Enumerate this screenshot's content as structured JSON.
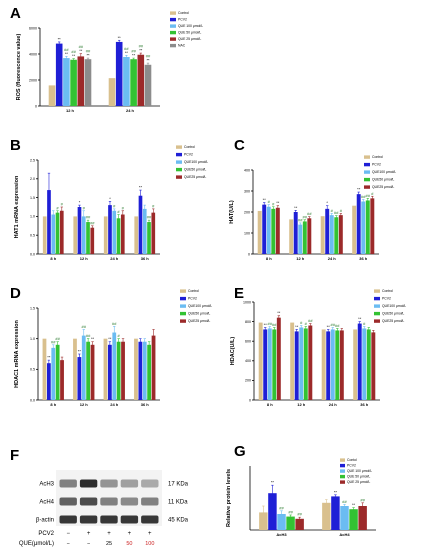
{
  "colors": {
    "control": "#d9c08e",
    "pcv2": "#1f1fd6",
    "que100": "#6bbcf2",
    "que50": "#33c233",
    "que25": "#9c2a2a",
    "nac": "#8c8c8c",
    "band": "#222222"
  },
  "chart_data": [
    {
      "panel": "A",
      "type": "bar",
      "ylabel": "ROS (fluorescence value)",
      "ylim": [
        0,
        7000
      ],
      "yticks": [
        "0",
        "2000",
        "4000",
        "6000"
      ],
      "categories": [
        "12 h",
        "24 h"
      ],
      "series": [
        {
          "name": "Control",
          "color_key": "control",
          "values": [
            1850,
            2500
          ],
          "errors": [
            0,
            0
          ],
          "annot": [
            "",
            ""
          ]
        },
        {
          "name": "PCV2",
          "color_key": "pcv2",
          "values": [
            5600,
            5750
          ],
          "errors": [
            150,
            150
          ],
          "annot": [
            "**",
            "**"
          ]
        },
        {
          "name": "QUE 100 μmol/L",
          "color_key": "que100",
          "values": [
            4300,
            4400
          ],
          "errors": [
            150,
            150
          ],
          "annot": [
            "##\n**",
            "##\n**"
          ]
        },
        {
          "name": "QUE 50 μmol/L",
          "color_key": "que50",
          "values": [
            4150,
            4200
          ],
          "errors": [
            100,
            100
          ],
          "annot": [
            "##\n**",
            "##\n**"
          ]
        },
        {
          "name": "QUE 25 μmol/L",
          "color_key": "que25",
          "values": [
            4450,
            4600
          ],
          "errors": [
            250,
            150
          ],
          "annot": [
            "##\n**",
            "##\n**"
          ]
        },
        {
          "name": "NAC",
          "color_key": "nac",
          "values": [
            4200,
            3700
          ],
          "errors": [
            100,
            150
          ],
          "annot": [
            "##\n**",
            "##\n**"
          ]
        }
      ]
    },
    {
      "panel": "B",
      "type": "bar",
      "ylabel": "HAT1 mRNA expression",
      "ylim": [
        0,
        2.5
      ],
      "yticks": [
        "0.0",
        "0.5",
        "1.0",
        "1.5",
        "2.0",
        "2.5"
      ],
      "categories": [
        "8 h",
        "12 h",
        "24 h",
        "36 h"
      ],
      "series": [
        {
          "name": "Control",
          "color_key": "control",
          "values": [
            1.0,
            1.0,
            1.0,
            1.0
          ],
          "errors": [
            0,
            0,
            0,
            0
          ],
          "annot": [
            "",
            "",
            "",
            ""
          ]
        },
        {
          "name": "PCV2",
          "color_key": "pcv2",
          "values": [
            1.7,
            1.25,
            1.3,
            1.55
          ],
          "errors": [
            0.45,
            0.05,
            0.1,
            0.15
          ],
          "annot": [
            "",
            "*",
            "*",
            "**"
          ]
        },
        {
          "name": "QUE100 μmol/L",
          "color_key": "que100",
          "values": [
            1.05,
            1.0,
            1.15,
            1.2
          ],
          "errors": [
            0.1,
            0.15,
            0.05,
            0.1
          ],
          "annot": [
            "",
            "#",
            "#",
            ""
          ]
        },
        {
          "name": "QUE50 μmol/L",
          "color_key": "que50",
          "values": [
            1.1,
            0.85,
            0.95,
            0.85
          ],
          "errors": [
            0.05,
            0.05,
            0.1,
            0.05
          ],
          "annot": [
            "#",
            "##",
            "#",
            "##"
          ]
        },
        {
          "name": "QUE25 μmol/L",
          "color_key": "que25",
          "values": [
            1.15,
            0.7,
            1.05,
            1.1
          ],
          "errors": [
            0.1,
            0.05,
            0.1,
            0.1
          ],
          "annot": [
            "#",
            "##",
            "#",
            "#"
          ]
        }
      ]
    },
    {
      "panel": "C",
      "type": "bar",
      "ylabel": "HAT(U/L)",
      "ylim": [
        0,
        400
      ],
      "yticks": [
        "0",
        "100",
        "200",
        "300",
        "400"
      ],
      "categories": [
        "8 h",
        "12 h",
        "24 h",
        "36 h"
      ],
      "series": [
        {
          "name": "Control",
          "color_key": "control",
          "values": [
            205,
            165,
            180,
            230
          ],
          "errors": [
            0,
            0,
            0,
            0
          ],
          "annot": [
            "",
            "",
            "",
            ""
          ]
        },
        {
          "name": "PCV2",
          "color_key": "pcv2",
          "values": [
            235,
            200,
            215,
            285
          ],
          "errors": [
            10,
            8,
            15,
            10
          ],
          "annot": [
            "**",
            "**",
            "*",
            "**"
          ]
        },
        {
          "name": "QUE100 μmol/L",
          "color_key": "que100",
          "values": [
            225,
            140,
            185,
            250
          ],
          "errors": [
            10,
            8,
            8,
            10
          ],
          "annot": [
            "#",
            "##",
            "#",
            "##"
          ]
        },
        {
          "name": "QUE50 μmol/L",
          "color_key": "que50",
          "values": [
            215,
            155,
            175,
            255
          ],
          "errors": [
            10,
            8,
            8,
            10
          ],
          "annot": [
            "#",
            "##",
            "##",
            "##"
          ]
        },
        {
          "name": "QUE25 μmol/L",
          "color_key": "que25",
          "values": [
            220,
            170,
            185,
            265
          ],
          "errors": [
            10,
            8,
            8,
            10
          ],
          "annot": [
            "**",
            "##",
            "#",
            "#"
          ]
        }
      ]
    },
    {
      "panel": "D",
      "type": "bar",
      "ylabel": "HDAC1 mRNA expression",
      "ylim": [
        0,
        1.5
      ],
      "yticks": [
        "0.0",
        "0.5",
        "1.0",
        "1.5"
      ],
      "categories": [
        "8 h",
        "12 h",
        "24 h",
        "36 h"
      ],
      "series": [
        {
          "name": "Control",
          "color_key": "control",
          "values": [
            1.0,
            1.0,
            1.0,
            1.0
          ],
          "errors": [
            0,
            0,
            0,
            0
          ],
          "annot": [
            "",
            "",
            "",
            ""
          ]
        },
        {
          "name": "PCV2",
          "color_key": "pcv2",
          "values": [
            0.6,
            0.7,
            0.9,
            0.95
          ],
          "errors": [
            0.05,
            0.05,
            0.05,
            0.05
          ],
          "annot": [
            "**",
            "**",
            "**",
            ""
          ]
        },
        {
          "name": "QUE100 μmol/L",
          "color_key": "que100",
          "values": [
            0.85,
            1.05,
            1.1,
            0.95
          ],
          "errors": [
            0.05,
            0.1,
            0.1,
            0.05
          ],
          "annot": [
            "##",
            "##",
            "##",
            ""
          ]
        },
        {
          "name": "QUE50 μmol/L",
          "color_key": "que50",
          "values": [
            0.9,
            0.95,
            0.95,
            0.9
          ],
          "errors": [
            0.05,
            0.05,
            0.05,
            0.05
          ],
          "annot": [
            "##",
            "##",
            "#",
            ""
          ]
        },
        {
          "name": "QUE25 μmol/L",
          "color_key": "que25",
          "values": [
            0.65,
            0.9,
            0.95,
            1.05
          ],
          "errors": [
            0.05,
            0.05,
            0.05,
            0.1
          ],
          "annot": [
            "",
            "**",
            "",
            ""
          ]
        }
      ]
    },
    {
      "panel": "E",
      "type": "bar",
      "ylabel": "HDAC(U/L)",
      "ylim": [
        0,
        1000
      ],
      "yticks": [
        "0",
        "200",
        "400",
        "600",
        "800",
        "1000"
      ],
      "categories": [
        "8 h",
        "12 h",
        "24 h",
        "36 h"
      ],
      "series": [
        {
          "name": "Control",
          "color_key": "control",
          "values": [
            790,
            790,
            720,
            720
          ],
          "errors": [
            0,
            0,
            0,
            0
          ],
          "annot": [
            "",
            "",
            "",
            ""
          ]
        },
        {
          "name": "PCV2",
          "color_key": "pcv2",
          "values": [
            720,
            700,
            700,
            780
          ],
          "errors": [
            20,
            20,
            20,
            20
          ],
          "annot": [
            "**",
            "**",
            "**",
            "**"
          ]
        },
        {
          "name": "QUE100 μmol/L",
          "color_key": "que100",
          "values": [
            730,
            740,
            720,
            730
          ],
          "errors": [
            20,
            20,
            20,
            20
          ],
          "annot": [
            "##",
            "#",
            "##",
            "#"
          ]
        },
        {
          "name": "QUE50 μmol/L",
          "color_key": "que50",
          "values": [
            720,
            730,
            710,
            720
          ],
          "errors": [
            20,
            20,
            20,
            20
          ],
          "annot": [
            "##",
            "#",
            "##",
            ""
          ]
        },
        {
          "name": "QUE25 μmol/L",
          "color_key": "que25",
          "values": [
            840,
            760,
            710,
            690
          ],
          "errors": [
            20,
            20,
            20,
            20
          ],
          "annot": [
            "**",
            "##",
            "",
            ""
          ]
        }
      ]
    },
    {
      "panel": "G",
      "type": "bar",
      "ylabel": "Relative protein levels",
      "ylim": [
        0,
        2.0
      ],
      "yticks": [],
      "categories": [
        "AcH3",
        "AcH4"
      ],
      "series": [
        {
          "name": "Contol",
          "color_key": "control",
          "values": [
            0.55,
            0.85
          ],
          "errors": [
            0.2,
            0.1
          ],
          "annot": [
            "",
            ""
          ]
        },
        {
          "name": "PCV2",
          "color_key": "pcv2",
          "values": [
            1.15,
            1.05
          ],
          "errors": [
            0.25,
            0.05
          ],
          "annot": [
            "**",
            "**"
          ]
        },
        {
          "name": "QUE 100 μmol/L",
          "color_key": "que100",
          "values": [
            0.5,
            0.75
          ],
          "errors": [
            0.1,
            0.05
          ],
          "annot": [
            "##",
            "##"
          ]
        },
        {
          "name": "QUE 50 μmol/L",
          "color_key": "que50",
          "values": [
            0.42,
            0.65
          ],
          "errors": [
            0.05,
            0.05
          ],
          "annot": [
            "##",
            "**"
          ]
        },
        {
          "name": "QUE 25 μmol/L",
          "color_key": "que25",
          "values": [
            0.35,
            0.75
          ],
          "errors": [
            0.05,
            0.1
          ],
          "annot": [
            "##",
            "##"
          ]
        }
      ]
    }
  ],
  "panel_f": {
    "letter": "F",
    "bands": [
      {
        "label": "AcH3",
        "kda": "17 KDa",
        "intensity": [
          0.55,
          0.95,
          0.45,
          0.4,
          0.35
        ]
      },
      {
        "label": "AcH4",
        "kda": "11 KDa",
        "intensity": [
          0.7,
          0.8,
          0.55,
          0.5,
          0.55
        ]
      },
      {
        "label": "β-actin",
        "kda": "45 KDa",
        "intensity": [
          0.9,
          0.9,
          0.9,
          0.9,
          0.9
        ]
      }
    ],
    "pcv2_label": "PCV2",
    "pcv2_marks": [
      "−",
      "+",
      "+",
      "+",
      "+"
    ],
    "que_label": "QUE(μmol/L)",
    "que_marks": [
      "−",
      "−",
      "25",
      "50",
      "100"
    ],
    "que_mark_colors": [
      "#000",
      "#000",
      "#000",
      "#c22",
      "#c22"
    ]
  }
}
